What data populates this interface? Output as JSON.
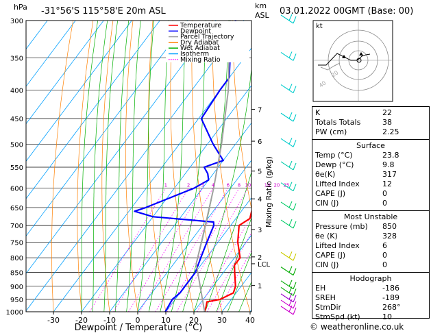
{
  "header": {
    "hpa_label": "hPa",
    "location": "-31°56'S 115°58'E 20m ASL",
    "km_label": "km",
    "asl_label": "ASL",
    "datetime": "03.01.2022 00GMT (Base: 00)"
  },
  "chart_data": {
    "type": "line",
    "title": "",
    "xlabel": "Dewpoint / Temperature (°C)",
    "ylabel": "hPa",
    "mixing_label": "Mixing Ratio (g/kg)",
    "x_ticks": [
      -30,
      -20,
      -10,
      0,
      10,
      20,
      30,
      40
    ],
    "pressure_ticks": [
      300,
      350,
      400,
      450,
      500,
      550,
      600,
      650,
      700,
      750,
      800,
      850,
      900,
      950,
      1000
    ],
    "km_ticks": [
      {
        "label": "7",
        "p": 433
      },
      {
        "label": "6",
        "p": 494
      },
      {
        "label": "5",
        "p": 559
      },
      {
        "label": "4",
        "p": 627
      },
      {
        "label": "3",
        "p": 712
      },
      {
        "label": "2",
        "p": 797
      },
      {
        "label": "LCL",
        "p": 820
      },
      {
        "label": "1",
        "p": 897
      }
    ],
    "mixing_ratio_labels": [
      "1",
      "2",
      "3",
      "4",
      "6",
      "8",
      "10",
      "16",
      "20",
      "25"
    ],
    "legend": [
      {
        "name": "Temperature",
        "color": "#ff0000",
        "style": "solid"
      },
      {
        "name": "Dewpoint",
        "color": "#0000ff",
        "style": "solid"
      },
      {
        "name": "Parcel Trajectory",
        "color": "#a0a0a0",
        "style": "solid"
      },
      {
        "name": "Dry Adiabat",
        "color": "#ff8000",
        "style": "solid"
      },
      {
        "name": "Wet Adiabat",
        "color": "#00b000",
        "style": "solid"
      },
      {
        "name": "Isotherm",
        "color": "#00a0ff",
        "style": "solid"
      },
      {
        "name": "Mixing Ratio",
        "color": "#ff00ff",
        "style": "dotted"
      }
    ],
    "series": [
      {
        "name": "Temperature",
        "color": "#ff0000",
        "points": [
          [
            1000,
            23.8
          ],
          [
            980,
            23
          ],
          [
            960,
            22
          ],
          [
            950,
            26
          ],
          [
            925,
            29
          ],
          [
            900,
            28
          ],
          [
            850,
            24
          ],
          [
            825,
            22
          ],
          [
            800,
            22
          ],
          [
            750,
            17
          ],
          [
            700,
            13
          ],
          [
            680,
            15
          ],
          [
            650,
            13
          ],
          [
            600,
            10
          ],
          [
            550,
            6
          ],
          [
            500,
            4
          ],
          [
            450,
            -2
          ],
          [
            400,
            -8
          ],
          [
            350,
            -15
          ],
          [
            300,
            -23
          ]
        ]
      },
      {
        "name": "Dewpoint",
        "color": "#0000ff",
        "points": [
          [
            1000,
            9.8
          ],
          [
            950,
            9
          ],
          [
            925,
            10
          ],
          [
            900,
            10
          ],
          [
            850,
            10
          ],
          [
            800,
            8
          ],
          [
            750,
            6
          ],
          [
            700,
            4
          ],
          [
            690,
            3
          ],
          [
            675,
            -20
          ],
          [
            660,
            -28
          ],
          [
            650,
            -25
          ],
          [
            600,
            -13
          ],
          [
            580,
            -10
          ],
          [
            565,
            -12
          ],
          [
            550,
            -15
          ],
          [
            535,
            -10
          ],
          [
            500,
            -18
          ],
          [
            450,
            -29
          ],
          [
            400,
            -30
          ],
          [
            380,
            -30
          ],
          [
            350,
            -35
          ],
          [
            300,
            -43
          ]
        ]
      },
      {
        "name": "Parcel Trajectory",
        "color": "#a0a0a0",
        "points": [
          [
            1000,
            23.8
          ],
          [
            820,
            8
          ],
          [
            700,
            1
          ],
          [
            600,
            -6
          ],
          [
            500,
            -15
          ],
          [
            400,
            -27
          ],
          [
            300,
            -45
          ]
        ]
      }
    ],
    "wind_barbs": [
      {
        "p": 1000,
        "color": "#cc00cc"
      },
      {
        "p": 975,
        "color": "#cc00cc"
      },
      {
        "p": 950,
        "color": "#9900cc"
      },
      {
        "p": 925,
        "color": "#00aa00"
      },
      {
        "p": 900,
        "color": "#00aa00"
      },
      {
        "p": 850,
        "color": "#00aa00"
      },
      {
        "p": 800,
        "color": "#cccc00"
      },
      {
        "p": 700,
        "color": "#00cc66"
      },
      {
        "p": 650,
        "color": "#00cc66"
      },
      {
        "p": 600,
        "color": "#00ccaa"
      },
      {
        "p": 550,
        "color": "#00ccaa"
      },
      {
        "p": 500,
        "color": "#00cccc"
      },
      {
        "p": 450,
        "color": "#00cccc"
      },
      {
        "p": 400,
        "color": "#00cccc"
      },
      {
        "p": 350,
        "color": "#00cccc"
      },
      {
        "p": 300,
        "color": "#00cccc"
      }
    ]
  },
  "hodograph": {
    "label": "kt",
    "ring_labels": [
      "20",
      "40"
    ]
  },
  "indices": {
    "basic": [
      {
        "label": "K",
        "value": "22"
      },
      {
        "label": "Totals Totals",
        "value": "38"
      },
      {
        "label": "PW (cm)",
        "value": "2.25"
      }
    ],
    "surface_title": "Surface",
    "surface": [
      {
        "label": "Temp (°C)",
        "value": "23.8"
      },
      {
        "label": "Dewp (°C)",
        "value": "9.8"
      },
      {
        "label": "θe(K)",
        "value": "317"
      },
      {
        "label": "Lifted Index",
        "value": "12"
      },
      {
        "label": "CAPE (J)",
        "value": "0"
      },
      {
        "label": "CIN (J)",
        "value": "0"
      }
    ],
    "mu_title": "Most Unstable",
    "most_unstable": [
      {
        "label": "Pressure (mb)",
        "value": "850"
      },
      {
        "label": "θe (K)",
        "value": "328"
      },
      {
        "label": "Lifted Index",
        "value": "6"
      },
      {
        "label": "CAPE (J)",
        "value": "0"
      },
      {
        "label": "CIN (J)",
        "value": "0"
      }
    ],
    "hodo_title": "Hodograph",
    "hodograph": [
      {
        "label": "EH",
        "value": "-186"
      },
      {
        "label": "SREH",
        "value": "-189"
      },
      {
        "label": "StmDir",
        "value": "268°"
      },
      {
        "label": "StmSpd (kt)",
        "value": "10"
      }
    ]
  },
  "footer": "© weatheronline.co.uk"
}
